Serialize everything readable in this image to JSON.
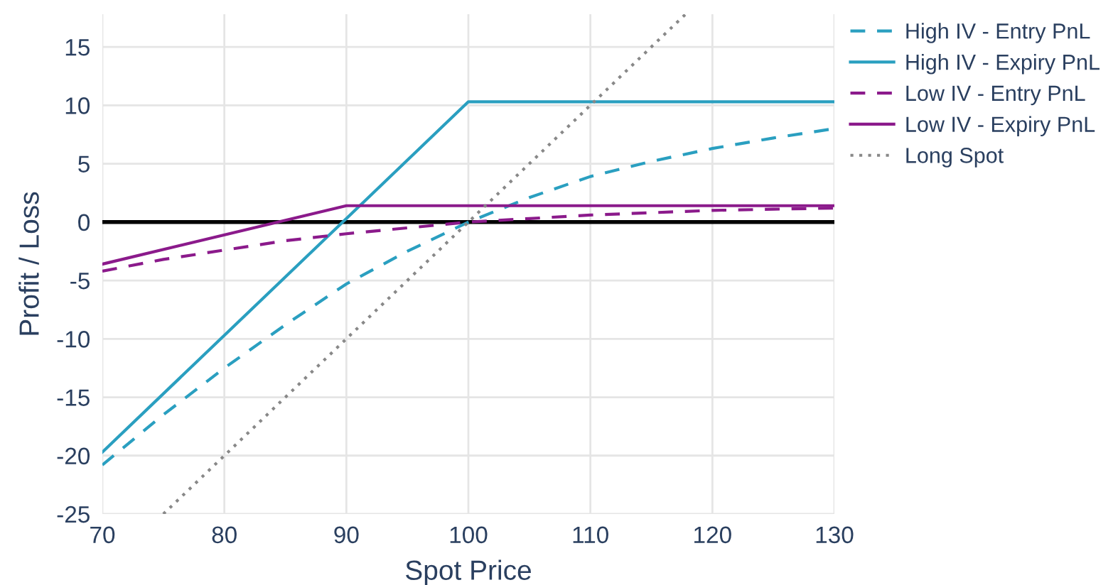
{
  "chart_data": {
    "type": "line",
    "xlabel": "Spot Price",
    "ylabel": "Profit / Loss",
    "xlim": [
      70,
      130
    ],
    "xticks": [
      70,
      80,
      90,
      100,
      110,
      120,
      130
    ],
    "ylim": [
      -25,
      17.8
    ],
    "yticks": [
      -25,
      -20,
      -15,
      -10,
      -5,
      0,
      5,
      10,
      15
    ],
    "grid": true,
    "legend": "top right",
    "ref_lines": [
      {
        "axis": "y",
        "value": 0,
        "color": "#000000",
        "line_style": "solid"
      }
    ],
    "series": [
      {
        "name": "High IV - Entry PnL",
        "color": "#2a9fc0",
        "line_style": "dashed",
        "x": [
          70,
          75,
          80,
          85,
          90,
          95,
          100,
          105,
          110,
          115,
          120,
          125,
          130
        ],
        "values": [
          -20.8,
          -16.5,
          -12.5,
          -8.8,
          -5.3,
          -2.5,
          0,
          2.1,
          3.9,
          5.2,
          6.3,
          7.2,
          8.0
        ]
      },
      {
        "name": "High IV - Expiry PnL",
        "color": "#2a9fc0",
        "line_style": "solid",
        "x": [
          70,
          100,
          130
        ],
        "values": [
          -19.7,
          10.3,
          10.3
        ]
      },
      {
        "name": "Low IV - Entry PnL",
        "color": "#8b1a8b",
        "line_style": "dashed",
        "x": [
          70,
          75,
          80,
          85,
          90,
          95,
          100,
          105,
          110,
          115,
          120,
          125,
          130
        ],
        "values": [
          -4.2,
          -3.2,
          -2.4,
          -1.6,
          -1.0,
          -0.5,
          0,
          0.3,
          0.6,
          0.8,
          1.0,
          1.1,
          1.2
        ]
      },
      {
        "name": "Low IV - Expiry PnL",
        "color": "#8b1a8b",
        "line_style": "solid",
        "x": [
          70,
          90,
          130
        ],
        "values": [
          -3.6,
          1.4,
          1.4
        ]
      },
      {
        "name": "Long Spot",
        "color": "#888888",
        "line_style": "dotted",
        "x": [
          75,
          117.8
        ],
        "values": [
          -25,
          17.8
        ]
      }
    ]
  }
}
